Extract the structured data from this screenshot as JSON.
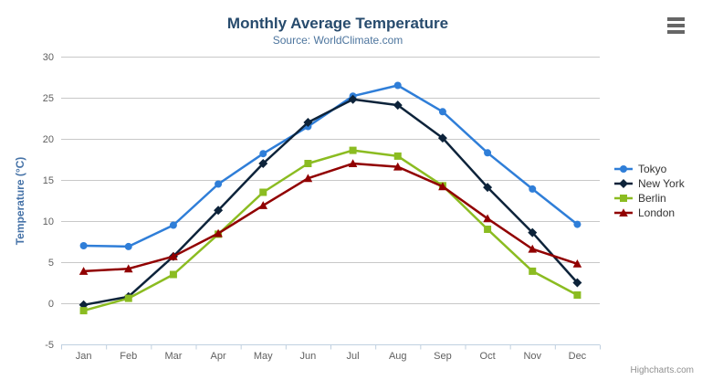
{
  "credits": {
    "label": "Highcharts.com"
  },
  "toolbar": {
    "context_menu_icon": "hamburger-icon"
  },
  "colors": {
    "title": "#274b6d",
    "subtitle": "#4d759e",
    "axis_title": "#4572a7",
    "tick_label": "#606060",
    "gridline": "#c8c8c8",
    "axis_line": "#c0d0e0",
    "legend_text": "#333333",
    "credits_text": "#909090"
  },
  "chart_data": {
    "type": "line",
    "title": "Monthly Average Temperature",
    "subtitle": "Source: WorldClimate.com",
    "xlabel": "",
    "ylabel": "Temperature (°C)",
    "ylim": [
      -5,
      30
    ],
    "yticks": [
      -5,
      0,
      5,
      10,
      15,
      20,
      25,
      30
    ],
    "grid": true,
    "legend_position": "right",
    "categories": [
      "Jan",
      "Feb",
      "Mar",
      "Apr",
      "May",
      "Jun",
      "Jul",
      "Aug",
      "Sep",
      "Oct",
      "Nov",
      "Dec"
    ],
    "series": [
      {
        "name": "Tokyo",
        "color": "#2f7ed8",
        "marker": "circle",
        "values": [
          7.0,
          6.9,
          9.5,
          14.5,
          18.2,
          21.5,
          25.2,
          26.5,
          23.3,
          18.3,
          13.9,
          9.6
        ]
      },
      {
        "name": "New York",
        "color": "#0d233a",
        "marker": "diamond",
        "values": [
          -0.2,
          0.8,
          5.7,
          11.3,
          17.0,
          22.0,
          24.8,
          24.1,
          20.1,
          14.1,
          8.6,
          2.5
        ]
      },
      {
        "name": "Berlin",
        "color": "#8bbc21",
        "marker": "square",
        "values": [
          -0.9,
          0.6,
          3.5,
          8.4,
          13.5,
          17.0,
          18.6,
          17.9,
          14.3,
          9.0,
          3.9,
          1.0
        ]
      },
      {
        "name": "London",
        "color": "#910000",
        "marker": "triangle",
        "values": [
          3.9,
          4.2,
          5.7,
          8.5,
          11.9,
          15.2,
          17.0,
          16.6,
          14.2,
          10.3,
          6.6,
          4.8
        ]
      }
    ]
  }
}
